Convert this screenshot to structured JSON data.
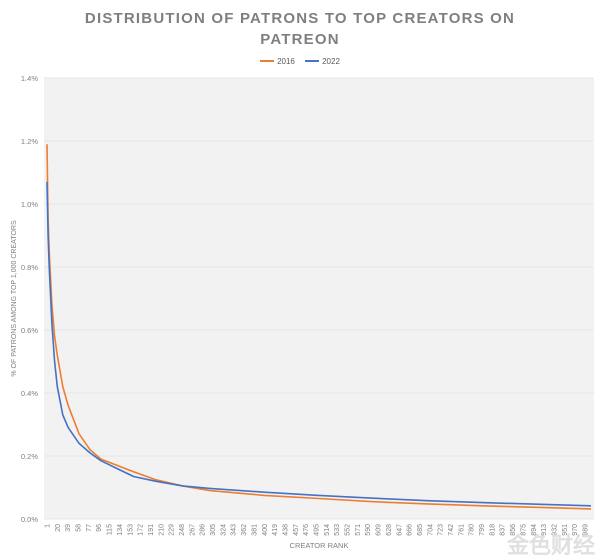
{
  "chart_data": {
    "type": "line",
    "title": "DISTRIBUTION OF PATRONS TO TOP CREATORS ON PATREON",
    "title_lines": [
      "DISTRIBUTION OF PATRONS TO TOP CREATORS ON",
      "PATREON"
    ],
    "xlabel": "CREATOR RANK",
    "ylabel": "% OF PATRONS AMONG TOP 1,000 CREATORS",
    "ylim": [
      0,
      1.4
    ],
    "yticks": [
      "0.0%",
      "0.2%",
      "0.4%",
      "0.6%",
      "0.8%",
      "1.0%",
      "1.2%",
      "1.4%"
    ],
    "xlim": [
      1,
      1000
    ],
    "xtick_start": 1,
    "xtick_step": 19,
    "grid": true,
    "legend_position": "top",
    "x": [
      1,
      3,
      5,
      10,
      15,
      20,
      30,
      40,
      60,
      80,
      100,
      130,
      160,
      200,
      250,
      300,
      400,
      500,
      600,
      700,
      800,
      900,
      1000
    ],
    "series": [
      {
        "name": "2016",
        "color": "#ed7d31",
        "values": [
          1.19,
          0.95,
          0.85,
          0.68,
          0.58,
          0.52,
          0.42,
          0.36,
          0.27,
          0.22,
          0.19,
          0.17,
          0.15,
          0.125,
          0.105,
          0.09,
          0.075,
          0.065,
          0.055,
          0.048,
          0.042,
          0.037,
          0.032
        ]
      },
      {
        "name": "2022",
        "color": "#4472c4",
        "values": [
          1.07,
          0.9,
          0.8,
          0.62,
          0.5,
          0.42,
          0.33,
          0.29,
          0.24,
          0.21,
          0.185,
          0.16,
          0.135,
          0.12,
          0.105,
          0.097,
          0.085,
          0.075,
          0.066,
          0.058,
          0.052,
          0.047,
          0.042
        ]
      }
    ]
  },
  "watermark": "金色财经"
}
